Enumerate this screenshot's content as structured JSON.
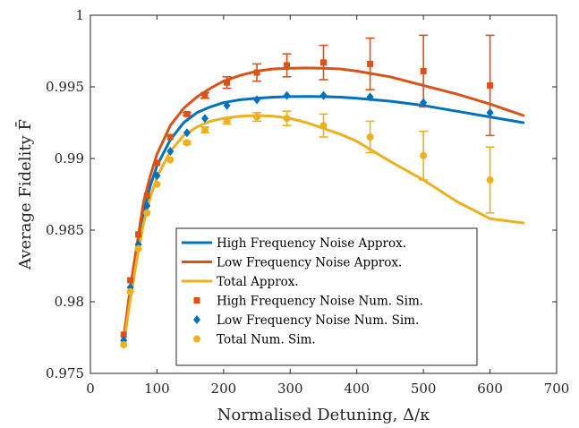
{
  "chart_data": {
    "type": "line",
    "xlabel": "Normalised Detuning, Δ/κ",
    "ylabel": "Average Fidelity F̄",
    "xlim": [
      0,
      700
    ],
    "ylim": [
      0.975,
      1.0
    ],
    "xticks": [
      0,
      100,
      200,
      300,
      400,
      500,
      600,
      700
    ],
    "yticks": [
      0.975,
      0.98,
      0.985,
      0.99,
      0.995,
      1.0
    ],
    "xtick_labels": [
      "0",
      "100",
      "200",
      "300",
      "400",
      "500",
      "600",
      "700"
    ],
    "ytick_labels": [
      "0.975",
      "0.98",
      "0.985",
      "0.99",
      "0.995",
      "1"
    ],
    "grid": false,
    "legend_position": "bottom-center",
    "series": [
      {
        "name": "High Frequency Noise Approx.",
        "kind": "line",
        "color": "#0072BD",
        "x": [
          50,
          60,
          70,
          80,
          90,
          100,
          120,
          140,
          160,
          180,
          200,
          225,
          250,
          275,
          300,
          325,
          350,
          375,
          400,
          450,
          500,
          550,
          600,
          650
        ],
        "y": [
          0.9772,
          0.9805,
          0.9835,
          0.9862,
          0.9881,
          0.9895,
          0.9913,
          0.9925,
          0.9932,
          0.9936,
          0.9939,
          0.9941,
          0.9942,
          0.99428,
          0.99432,
          0.99433,
          0.99432,
          0.99428,
          0.9942,
          0.994,
          0.9937,
          0.9933,
          0.9929,
          0.9925
        ]
      },
      {
        "name": "Low Frequency Noise Approx.",
        "kind": "line",
        "color": "#D95319",
        "x": [
          50,
          60,
          70,
          80,
          90,
          100,
          120,
          140,
          160,
          180,
          200,
          225,
          250,
          275,
          300,
          325,
          350,
          375,
          400,
          450,
          500,
          550,
          600,
          650
        ],
        "y": [
          0.9775,
          0.981,
          0.984,
          0.987,
          0.9888,
          0.9903,
          0.9923,
          0.9935,
          0.9943,
          0.9949,
          0.9954,
          0.9958,
          0.9961,
          0.99625,
          0.9963,
          0.99632,
          0.9963,
          0.99625,
          0.9961,
          0.9957,
          0.9951,
          0.9945,
          0.9938,
          0.993
        ]
      },
      {
        "name": "Total Approx.",
        "kind": "line",
        "color": "#EDB120",
        "x": [
          50,
          60,
          70,
          80,
          90,
          100,
          120,
          140,
          160,
          180,
          200,
          225,
          250,
          275,
          300,
          325,
          350,
          375,
          400,
          450,
          500,
          550,
          600,
          650
        ],
        "y": [
          0.977,
          0.9802,
          0.983,
          0.9855,
          0.9873,
          0.9887,
          0.9905,
          0.9916,
          0.9922,
          0.9926,
          0.9928,
          0.99295,
          0.993,
          0.99295,
          0.9928,
          0.9925,
          0.9921,
          0.9917,
          0.9912,
          0.9898,
          0.9885,
          0.987,
          0.9858,
          0.9855
        ]
      },
      {
        "name": "High Frequency Noise Num. Sim.",
        "kind": "marker",
        "marker": "square",
        "color": "#D95319",
        "x": [
          50,
          60,
          72,
          85,
          100,
          120,
          145,
          172,
          205,
          250,
          295,
          350,
          420,
          500,
          600
        ],
        "y": [
          0.9777,
          0.9815,
          0.9847,
          0.9874,
          0.9897,
          0.9915,
          0.9931,
          0.9944,
          0.9953,
          0.996,
          0.9965,
          0.9967,
          0.9966,
          0.9961,
          0.9951
        ],
        "error": [
          0,
          0,
          0,
          0,
          0,
          0,
          0.0001,
          0.0002,
          0.0004,
          0.0006,
          0.0008,
          0.0012,
          0.0018,
          0.0025,
          0.0035
        ]
      },
      {
        "name": "Low Frequency Noise Num. Sim.",
        "kind": "marker",
        "marker": "diamond",
        "color": "#0072BD",
        "x": [
          50,
          60,
          72,
          85,
          100,
          120,
          145,
          172,
          205,
          250,
          295,
          350,
          420,
          500,
          600
        ],
        "y": [
          0.9773,
          0.981,
          0.984,
          0.9867,
          0.9888,
          0.9905,
          0.9918,
          0.9928,
          0.9937,
          0.9941,
          0.9944,
          0.9944,
          0.9943,
          0.9939,
          0.9932
        ],
        "error": [
          0,
          0,
          0,
          0,
          0,
          0,
          0,
          0,
          0,
          0,
          0,
          0,
          0,
          0,
          0
        ]
      },
      {
        "name": "Total Num. Sim.",
        "kind": "marker",
        "marker": "circle",
        "color": "#EDB120",
        "x": [
          50,
          60,
          72,
          85,
          100,
          120,
          145,
          172,
          205,
          250,
          295,
          350,
          420,
          500,
          600
        ],
        "y": [
          0.977,
          0.9807,
          0.9837,
          0.9862,
          0.9882,
          0.9899,
          0.9911,
          0.992,
          0.9926,
          0.9929,
          0.9928,
          0.9923,
          0.9915,
          0.9902,
          0.9885
        ],
        "error": [
          0,
          0,
          0,
          0,
          0,
          0,
          0.0001,
          0.0002,
          0.0002,
          0.0003,
          0.0005,
          0.0008,
          0.0011,
          0.0017,
          0.0023
        ]
      }
    ]
  }
}
